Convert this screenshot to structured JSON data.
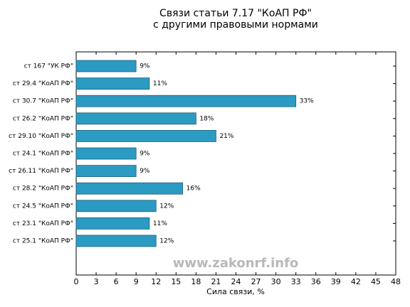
{
  "chart_data": {
    "type": "bar",
    "orientation": "horizontal",
    "title": "Связи статьи 7.17 \"КоАП РФ\"",
    "subtitle": "с другими правовыми нормами",
    "xlabel": "Сила связи, %",
    "annotation": "www.zakonrf.info",
    "categories": [
      "ст 167 \"УК РФ\"",
      "ст 29.4 \"КоАП РФ\"",
      "ст 30.7 \"КоАП РФ\"",
      "ст 26.2 \"КоАП РФ\"",
      "ст 29.10 \"КоАП РФ\"",
      "ст 24.1 \"КоАП РФ\"",
      "ст 26.11 \"КоАП РФ\"",
      "ст 28.2 \"КоАП РФ\"",
      "ст 24.5 \"КоАП РФ\"",
      "ст 23.1 \"КоАП РФ\"",
      "ст 25.1 \"КоАП РФ\""
    ],
    "values": [
      9,
      11,
      33,
      18,
      21,
      9,
      9,
      16,
      12,
      11,
      12
    ],
    "value_labels": [
      "9%",
      "11%",
      "33%",
      "18%",
      "21%",
      "9%",
      "9%",
      "16%",
      "12%",
      "11%",
      "12%"
    ],
    "color": "#2b9bc3",
    "xlim": [
      0,
      48
    ],
    "xticks": [
      0,
      3,
      6,
      9,
      12,
      15,
      18,
      21,
      24,
      27,
      30,
      33,
      36,
      39,
      42,
      45,
      48
    ]
  }
}
